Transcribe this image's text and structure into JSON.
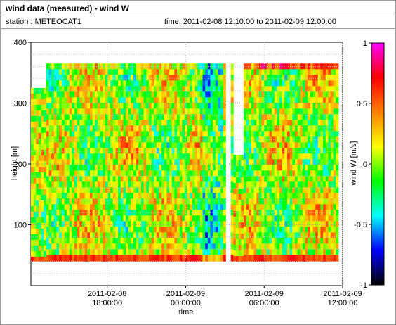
{
  "header": {
    "title": "wind data (measured) - wind W",
    "station": "station : METEOCAT1",
    "time_range": "time: 2011-02-08 12:10:00 to 2011-02-09 12:00:00"
  },
  "chart_data": {
    "type": "heatmap",
    "title": "wind data (measured) - wind W",
    "xlabel": "time",
    "ylabel": "height [m]",
    "colorbar_label": "wind W [m/s]",
    "xlim": [
      "2011-02-08 12:10:00",
      "2011-02-09 12:00:00"
    ],
    "ylim": [
      0,
      400
    ],
    "clim": [
      -1,
      1
    ],
    "x_ticks": [
      {
        "value": "2011-02-08 18:00:00",
        "date": "2011-02-08",
        "time": "18:00:00"
      },
      {
        "value": "2011-02-09 00:00:00",
        "date": "2011-02-09",
        "time": "00:00:00"
      },
      {
        "value": "2011-02-09 06:00:00",
        "date": "2011-02-09",
        "time": "06:00:00"
      },
      {
        "value": "2011-02-09 12:00:00",
        "date": "2011-02-09",
        "time": "12:00:00"
      }
    ],
    "y_ticks": [
      100,
      200,
      300,
      400
    ],
    "colorbar_ticks": [
      1,
      0.5,
      0,
      -0.5,
      -1
    ],
    "colorbar_colors": [
      "#ff00ff",
      "#ff0000",
      "#ff8000",
      "#ffff00",
      "#00ff00",
      "#00ffff",
      "#0000ff",
      "#000000"
    ],
    "grid": true,
    "data_top_height_m": 365,
    "data_bottom_height_m": 40
  }
}
